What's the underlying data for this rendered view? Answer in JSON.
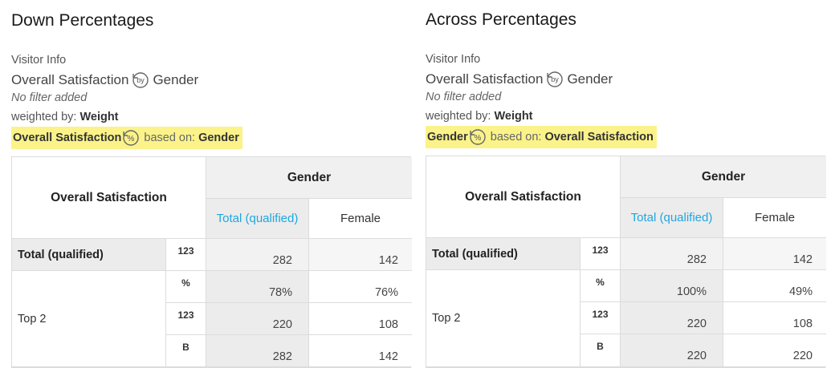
{
  "panels": [
    {
      "title": "Down Percentages",
      "visitor_info": "Visitor Info",
      "subject": "Overall Satisfaction",
      "by_icon": "by-icon",
      "by_text": "by",
      "subject_by": "Gender",
      "filter": "No filter added",
      "weighted_label": "weighted by:",
      "weighted_value": "Weight",
      "basis_var": "Overall Satisfaction",
      "percent_icon": "percent-icon",
      "percent_text": "%",
      "based_on_label": "based on:",
      "based_on_value": "Gender",
      "table": {
        "row_header": "Overall Satisfaction",
        "col_group": "Gender",
        "columns": [
          "Total (qualified)",
          "Female"
        ],
        "rows": [
          {
            "label": "Total (qualified)",
            "type": "123",
            "values": [
              "282",
              "142"
            ]
          },
          {
            "label": "Top 2",
            "type": "%",
            "values": [
              "78%",
              "76%"
            ]
          },
          {
            "label": "",
            "type": "123",
            "values": [
              "220",
              "108"
            ]
          },
          {
            "label": "",
            "type": "B",
            "values": [
              "282",
              "142"
            ]
          }
        ]
      }
    },
    {
      "title": "Across Percentages",
      "visitor_info": "Visitor Info",
      "subject": "Overall Satisfaction",
      "by_icon": "by-icon",
      "by_text": "by",
      "subject_by": "Gender",
      "filter": "No filter added",
      "weighted_label": "weighted by:",
      "weighted_value": "Weight",
      "basis_var": "Gender",
      "percent_icon": "percent-icon",
      "percent_text": "%",
      "based_on_label": "based on:",
      "based_on_value": "Overall Satisfaction",
      "table": {
        "row_header": "Overall Satisfaction",
        "col_group": "Gender",
        "columns": [
          "Total (qualified)",
          "Female"
        ],
        "rows": [
          {
            "label": "Total (qualified)",
            "type": "123",
            "values": [
              "282",
              "142"
            ]
          },
          {
            "label": "Top 2",
            "type": "%",
            "values": [
              "100%",
              "49%"
            ]
          },
          {
            "label": "",
            "type": "123",
            "values": [
              "220",
              "108"
            ]
          },
          {
            "label": "",
            "type": "B",
            "values": [
              "220",
              "220"
            ]
          }
        ]
      }
    }
  ],
  "colors": {
    "highlight": "#fbf38a",
    "link": "#1ea7e0",
    "shaded": "#ececec"
  }
}
